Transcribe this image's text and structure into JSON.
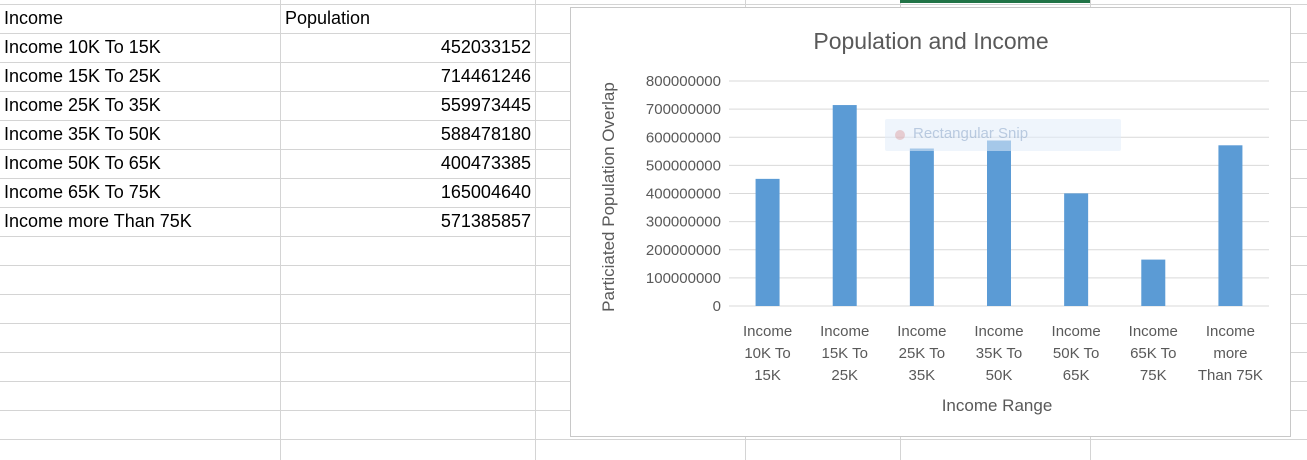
{
  "sheet": {
    "headers": [
      "Income",
      "Population"
    ],
    "rows": [
      {
        "income": "Income 10K To 15K",
        "population": "452033152"
      },
      {
        "income": "Income  15K To 25K",
        "population": "714461246"
      },
      {
        "income": "Income  25K To 35K",
        "population": "559973445"
      },
      {
        "income": "Income  35K To 50K",
        "population": "588478180"
      },
      {
        "income": "Income  50K To 65K",
        "population": "400473385"
      },
      {
        "income": "Income  65K To 75K",
        "population": "165004640"
      },
      {
        "income": "Income more Than 75K",
        "population": "571385857"
      }
    ]
  },
  "overlay": {
    "label": "Rectangular Snip"
  },
  "colors": {
    "bar": "#5b9bd5",
    "selection": "#217346",
    "gridline": "#d9d9d9"
  },
  "chart_data": {
    "type": "bar",
    "title": "Population and Income",
    "xlabel": "Income Range",
    "ylabel": "Particiated Population Overlap",
    "categories": [
      [
        "Income",
        "10K To",
        "15K"
      ],
      [
        "Income",
        "15K To",
        "25K"
      ],
      [
        "Income",
        "25K To",
        "35K"
      ],
      [
        "Income",
        "35K To",
        "50K"
      ],
      [
        "Income",
        "50K To",
        "65K"
      ],
      [
        "Income",
        "65K To",
        "75K"
      ],
      [
        "Income",
        "more",
        "Than 75K"
      ]
    ],
    "values": [
      452033152,
      714461246,
      559973445,
      588478180,
      400473385,
      165004640,
      571385857
    ],
    "ylim": [
      0,
      800000000
    ],
    "yticks": [
      "0",
      "100000000",
      "200000000",
      "300000000",
      "400000000",
      "500000000",
      "600000000",
      "700000000",
      "800000000"
    ],
    "grid": true,
    "legend": "none"
  }
}
